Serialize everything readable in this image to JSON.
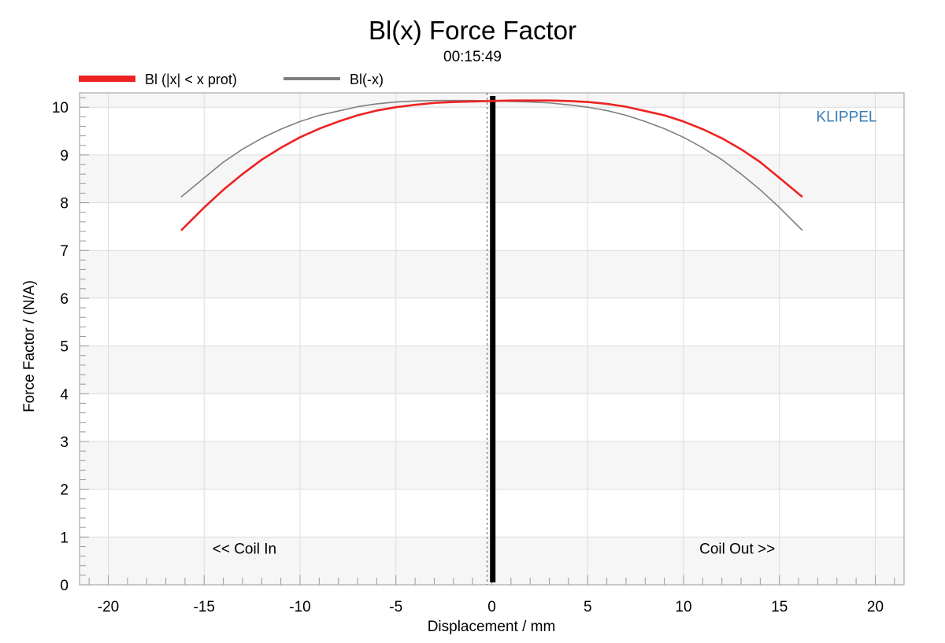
{
  "chart_data": {
    "type": "line",
    "title": "Bl(x) Force Factor",
    "subtitle": "00:15:49",
    "xlabel": "Displacement / mm",
    "ylabel": "Force Factor / (N/A)",
    "xlim": [
      -21.5,
      21.5
    ],
    "ylim": [
      0,
      10.3
    ],
    "xticks": [
      -20,
      -15,
      -10,
      -5,
      0,
      5,
      10,
      15,
      20
    ],
    "xtick_labels": [
      "-20",
      "-15",
      "-10",
      "-5",
      "0",
      "5",
      "10",
      "15",
      "20"
    ],
    "yticks": [
      0,
      1,
      2,
      3,
      4,
      5,
      6,
      7,
      8,
      9,
      10
    ],
    "ytick_labels": [
      "0",
      "1",
      "2",
      "3",
      "4",
      "5",
      "6",
      "7",
      "8",
      "9",
      "10"
    ],
    "grid": true,
    "legend_position": "top-left",
    "series": [
      {
        "name": "Bl (|x| < x prot)",
        "color": "#ee2222",
        "x": [
          -16.2,
          -15,
          -14,
          -13,
          -12,
          -11,
          -10,
          -9,
          -8,
          -7,
          -6,
          -5,
          -4,
          -3,
          -2,
          -1,
          0,
          1,
          2,
          3,
          4,
          5,
          6,
          7,
          8,
          9,
          10,
          11,
          12,
          13,
          14,
          15,
          16.2
        ],
        "y": [
          7.42,
          7.9,
          8.27,
          8.6,
          8.9,
          9.15,
          9.37,
          9.55,
          9.7,
          9.83,
          9.93,
          10.0,
          10.05,
          10.09,
          10.11,
          10.12,
          10.13,
          10.14,
          10.14,
          10.14,
          10.13,
          10.11,
          10.07,
          10.01,
          9.92,
          9.83,
          9.7,
          9.54,
          9.35,
          9.12,
          8.85,
          8.52,
          8.12
        ]
      },
      {
        "name": "Bl(-x)",
        "color": "#808080",
        "x": [
          -16.2,
          -15,
          -14,
          -13,
          -12,
          -11,
          -10,
          -9,
          -8,
          -7,
          -6,
          -5,
          -4,
          -3,
          -2,
          -1,
          0,
          1,
          2,
          3,
          4,
          5,
          6,
          7,
          8,
          9,
          10,
          11,
          12,
          13,
          14,
          15,
          16.2
        ],
        "y": [
          8.12,
          8.52,
          8.85,
          9.12,
          9.35,
          9.54,
          9.7,
          9.83,
          9.92,
          10.01,
          10.07,
          10.11,
          10.13,
          10.14,
          10.14,
          10.14,
          10.13,
          10.12,
          10.11,
          10.09,
          10.05,
          10.0,
          9.93,
          9.83,
          9.7,
          9.55,
          9.37,
          9.15,
          8.9,
          8.6,
          8.27,
          7.9,
          7.42
        ]
      }
    ],
    "vertical_markers": [
      {
        "x": 0,
        "style": "dotted",
        "color": "#666666"
      },
      {
        "x": 0.05,
        "style": "thick",
        "color": "#000000"
      }
    ],
    "annotations": [
      {
        "text": "KLIPPEL",
        "x": 18.5,
        "y": 9.8,
        "color": "#3a7db5"
      },
      {
        "text": "<< Coil In",
        "x": -12.9,
        "y": 0.75,
        "color": "#000000"
      },
      {
        "text": "Coil Out >>",
        "x": 12.8,
        "y": 0.75,
        "color": "#000000"
      }
    ]
  }
}
